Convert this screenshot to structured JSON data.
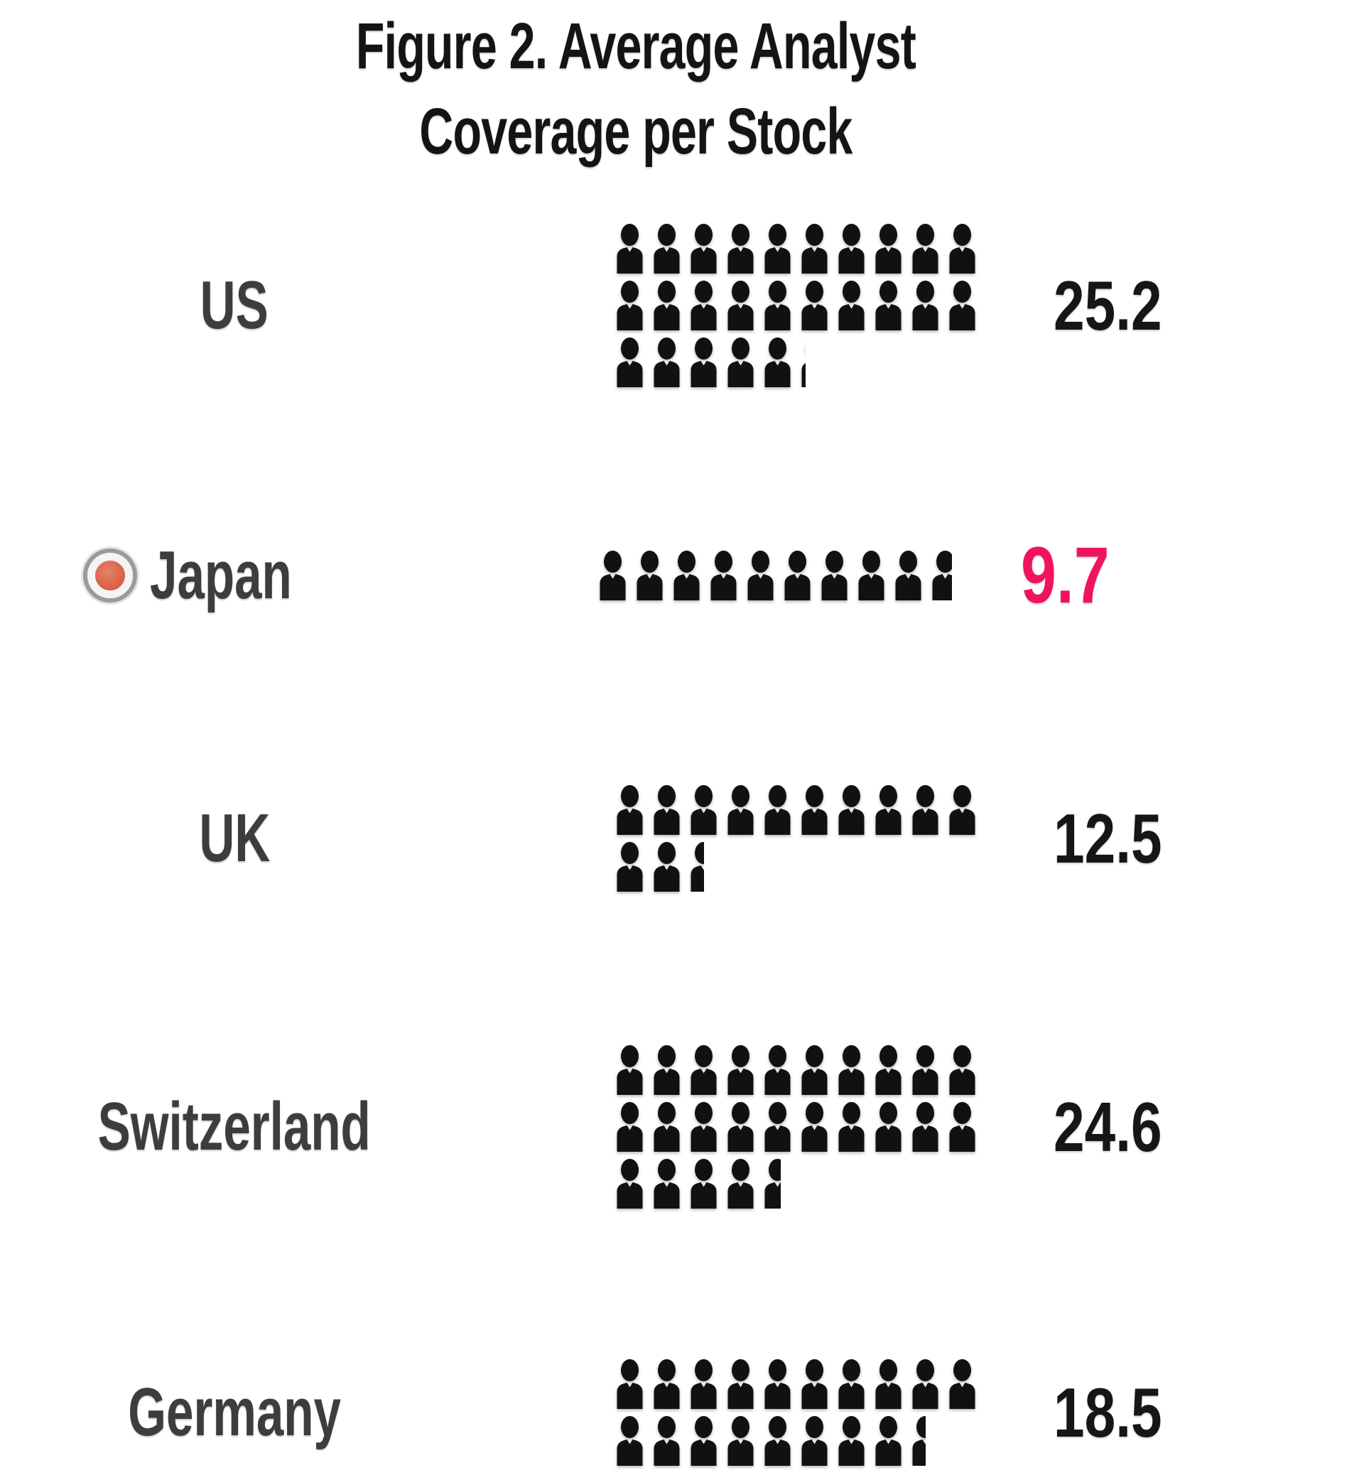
{
  "title": {
    "line1": "Figure 2. Average Analyst",
    "line2": "Coverage per Stock"
  },
  "chart_data": {
    "type": "pictogram",
    "title": "Figure 2. Average Analyst Coverage per Stock",
    "categories": [
      "US",
      "Japan",
      "UK",
      "Switzerland",
      "Germany"
    ],
    "values": [
      25.2,
      9.7,
      12.5,
      24.6,
      18.5
    ],
    "unit_per_icon": 1,
    "icons_per_row": 10,
    "icon": "person",
    "highlighted_category": "Japan",
    "legend": "none",
    "axes": "none",
    "notes": "Each person icon = 1 analyst; fractional values drawn as partially clipped icons; Germany bottom icon row cut off by image edge"
  },
  "rows": [
    {
      "label": "US",
      "value": "25.2",
      "highlighted": false
    },
    {
      "label": "Japan",
      "value": "9.7",
      "highlighted": true,
      "flag_icon": "japan-red-roundel"
    },
    {
      "label": "UK",
      "value": "12.5",
      "highlighted": false
    },
    {
      "label": "Switzerland",
      "value": "24.6",
      "highlighted": false
    },
    {
      "label": "Germany",
      "value": "18.5",
      "highlighted": false
    }
  ],
  "colors": {
    "background": "#ffffff",
    "title_text": "#141414",
    "label_text": "#3d3d40",
    "value_text": "#161616",
    "highlight_value": "#f0135f",
    "icon": "#111111",
    "japan_flag_center": "#dd6950",
    "japan_flag_inner_ring": "#f4f4f4",
    "japan_flag_outer_ring": "#9a9a9a"
  }
}
